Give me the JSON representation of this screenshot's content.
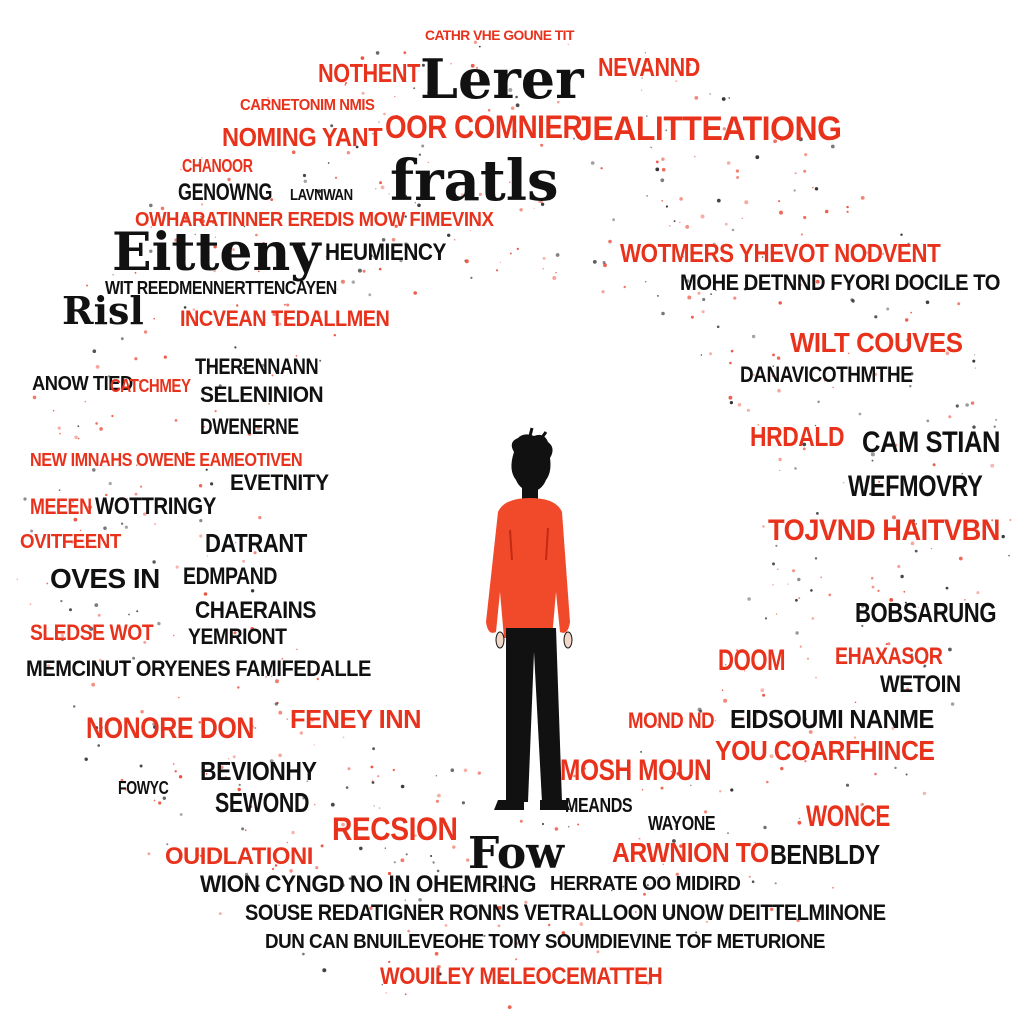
{
  "palette": {
    "red": "#e8321c",
    "black": "#111111",
    "background": "#ffffff"
  },
  "figure": {
    "description_icon": "standing-person-icon",
    "shirt_color": "#f04a2a",
    "pants_color": "#111111",
    "hair_color": "#111111"
  },
  "headline_words": [
    "Lerer",
    "fratls",
    "Eitteny",
    "Risl",
    "Fow"
  ],
  "words": [
    "NOTHENT",
    "CATHR VHE GOUNE TIT",
    "NEVANND",
    "OOR COMNIER",
    "JEALITTEATIONG",
    "NOMING YANT",
    "CARNETONIM NMIS",
    "CHANOOR",
    "GENOWNG",
    "HEUMIENCY",
    "OWHARATINNER EREDIS MOW FIMEVINX",
    "WOTMERS YHEVOT NODVENT",
    "MOHE DETNND FYORI DOCILE TO",
    "WIT REEDMENNERTTENCAYEN",
    "INCVEAN TEDALLMEN",
    "WILT COUVES",
    "THERENNANN",
    "SELENINION",
    "DWENERNE",
    "DANAVICOTHMTHE",
    "ANOW TIED",
    "CATCHMEY",
    "HRDALD",
    "CAM STIAN",
    "NEW IMNAHS OWENE EAMEOTIVEN",
    "EVETNITY",
    "WEFMOVRY",
    "MEEEN",
    "WOTTRINGY",
    "TOJVND HAITVBN",
    "OVITFEENT",
    "DATRANT",
    "OVES IN",
    "EDMPAND",
    "CHAERAINS",
    "BOBSARUNG",
    "SLEDSE WOT",
    "YEMRIONT",
    "DOOM",
    "EHAXASOR",
    "MEMCINUT ORYENES FAMIFEDALLE",
    "WETOIN",
    "NONORE DON",
    "FENEY INN",
    "EIDSOUMI NANME",
    "BEVIONHY",
    "MOND ND",
    "YOU COARFHINCE",
    "MOSH MOUN",
    "FOWYC",
    "SEWOND",
    "RECSION",
    "MEANDS",
    "WAYONE",
    "WONCE",
    "ARWNION TO",
    "BENBLDY",
    "OUIDLATIONI",
    "WION CYNGD NO IN OHEMRING",
    "HERRATE OO MIDIRD",
    "SOUSE REDATIGNER RONNS VETRALLOON UNOW DEITTELMINONE",
    "DUN CAN BNUILEVEOHE TOMY SOUMDIEVINE TOF METURIONE",
    "WOUILEY MELEOCEMATTEH",
    "LAVNWAN"
  ]
}
